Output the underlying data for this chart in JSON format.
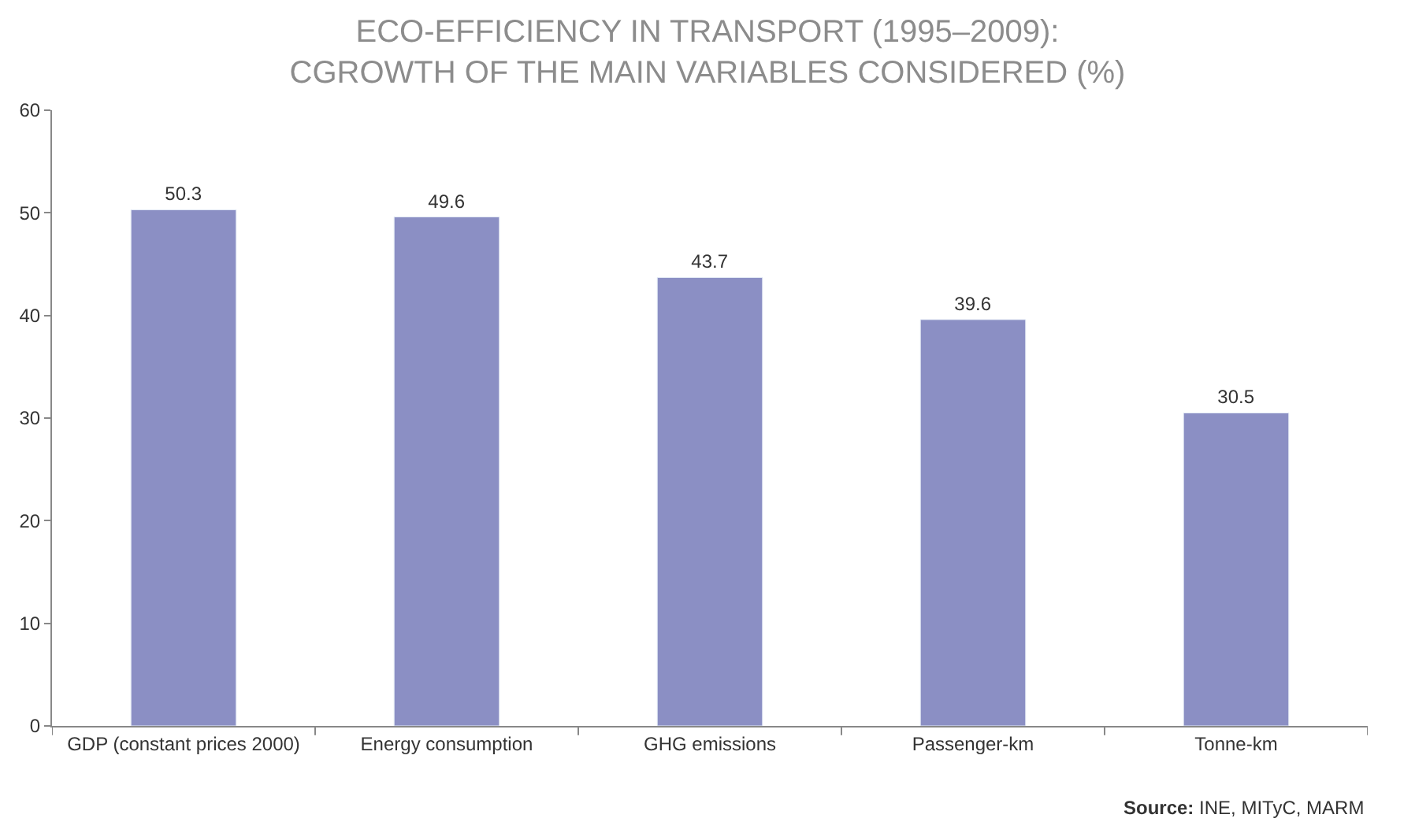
{
  "chart_data": {
    "type": "bar",
    "title": "ECO-EFFICIENCY IN TRANSPORT (1995–2009):\nCGROWTH OF THE MAIN VARIABLES CONSIDERED (%)",
    "categories": [
      "GDP (constant prices 2000)",
      "Energy consumption",
      "GHG emissions",
      "Passenger-km",
      "Tonne-km"
    ],
    "values": [
      50.3,
      49.6,
      43.7,
      39.6,
      30.5
    ],
    "color": "#8b8fc4",
    "ylim": [
      0,
      60
    ],
    "yticks": [
      0,
      10,
      20,
      30,
      40,
      50,
      60
    ],
    "data_labels": true,
    "annotations": [
      "Source: INE, MITyC, MARM"
    ]
  }
}
